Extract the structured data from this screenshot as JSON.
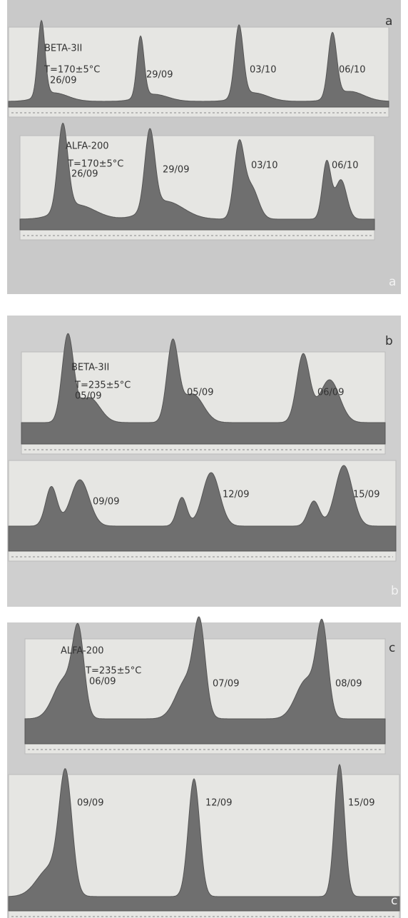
{
  "panels": [
    {
      "marker": "a",
      "strips": [
        {
          "sample": "BETA-3II",
          "condition": "T=170±5°C",
          "dates": [
            "26/09",
            "29/09",
            "03/10",
            "06/10"
          ]
        },
        {
          "sample": "ALFA-200",
          "condition": "T=170±5°C",
          "dates": [
            "26/09",
            "29/09",
            "03/10",
            "06/10"
          ]
        }
      ]
    },
    {
      "marker": "b",
      "strips": [
        {
          "sample": "BETA-3II",
          "condition": "T=235±5°C",
          "dates": [
            "05/09",
            "05/09",
            "06/09"
          ]
        },
        {
          "dates": [
            "09/09",
            "12/09",
            "15/09"
          ]
        }
      ]
    },
    {
      "marker": "c",
      "strips": [
        {
          "sample": "ALFA-200",
          "condition": "T=235±5°C",
          "dates": [
            "06/09",
            "07/09",
            "08/09"
          ]
        },
        {
          "dates": [
            "09/09",
            "12/09",
            "15/09"
          ]
        }
      ]
    }
  ]
}
